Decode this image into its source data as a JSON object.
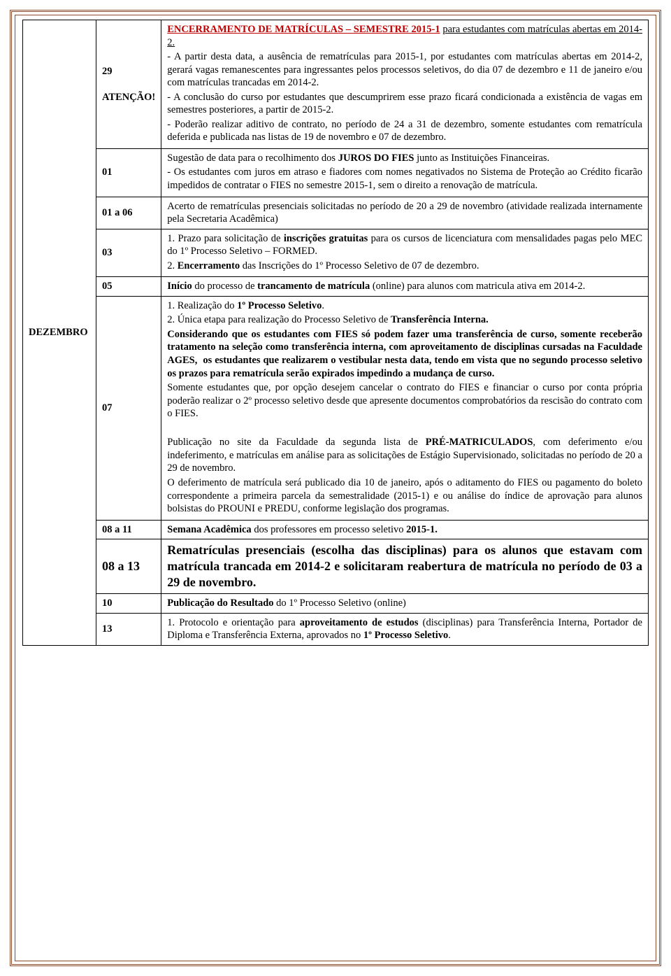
{
  "month": "DEZEMBRO",
  "rows": [
    {
      "date_html": "<span class='atencao'>29<br><br>ATENÇÃO!</span>",
      "content_html": "<p><span class='title-underline'>ENCERRAMENTO DE MATRÍCULAS – SEMESTRE 2015-1</span> <span style='text-decoration:underline'>para estudantes com matrículas abertas em 2014-2.</span></p><p>- A partir desta data, a ausência de rematrículas para 2015-1, por estudantes com matrículas abertas em 2014-2, gerará vagas remanescentes para ingressantes pelos processos seletivos, do dia 07 de dezembro e 11 de janeiro e/ou com matrículas trancadas em 2014-2.</p><p>- A conclusão do curso por estudantes que descumprirem esse prazo ficará condicionada a existência de vagas em semestres posteriores, a partir de 2015-2.</p><p>- Poderão realizar aditivo de contrato, no período de 24 a 31 de dezembro, somente estudantes com rematrícula deferida e publicada nas listas de 19 de novembro e 07 de dezembro.</p>"
    },
    {
      "date_html": "01",
      "content_html": "<p>Sugestão de data para o recolhimento dos <b>JUROS DO FIES</b> junto as Instituições Financeiras.</p><p>- Os estudantes com juros em atraso e fiadores com nomes negativados no Sistema de Proteção ao Crédito ficarão impedidos de contratar o FIES no semestre 2015-1, sem o direito a renovação de matrícula.</p>"
    },
    {
      "date_html": "01 a 06",
      "content_html": "Acerto de rematrículas presenciais solicitadas no período de 20 a 29 de novembro (atividade realizada internamente pela Secretaria Acadêmica)"
    },
    {
      "date_html": "03",
      "content_html": "<p>1. Prazo para solicitação de <b>inscrições gratuitas</b> para os cursos de licenciatura com mensalidades pagas pelo MEC do 1º Processo Seletivo – FORMED.</p><p>2. <b>Encerramento</b> das Inscrições do 1º Processo Seletivo de 07 de dezembro.</p>"
    },
    {
      "date_html": "05",
      "content_html": "<b>Início</b> do processo de <b>trancamento de matrícula</b> (online) para alunos com matricula ativa em 2014-2."
    },
    {
      "date_html": "07",
      "content_html": "<p>1. Realização do <b>1º Processo Seletivo</b>.</p><p>2. Única etapa para realização do Processo Seletivo de <b>Transferência Interna.</b></p><p><b>Considerando que os estudantes com FIES só podem fazer uma transferência de curso, somente receberão tratamento na seleção como transferência interna, com aproveitamento de disciplinas cursadas na Faculdade AGES, &nbsp;os estudantes que realizarem o vestibular nesta data, tendo em vista que no segundo processo seletivo os prazos para rematrícula serão expirados impedindo a mudança de curso.</b></p><p>Somente estudantes que, por opção desejem cancelar o contrato do FIES e financiar o curso por conta própria poderão realizar o 2º processo seletivo desde que apresente documentos comprobatórios da rescisão do contrato com o FIES.</p><p>&nbsp;</p><p>Publicação no site da Faculdade da segunda lista de <b>PRÉ-MATRICULADOS</b>, com deferimento e/ou indeferimento, e matrículas em análise para as solicitações de Estágio Supervisionado, solicitadas no período de 20 a 29 de novembro.</p><p>O deferimento de matrícula será publicado dia 10 de janeiro, após o aditamento do FIES ou pagamento do boleto correspondente a primeira parcela da semestralidade (2015-1) e ou análise do índice de aprovação para alunos bolsistas do PROUNI e PREDU, conforme legislação dos programas.</p>"
    },
    {
      "date_html": "08 a 11",
      "content_html": "<b>Semana Acadêmica</b> dos professores em processo seletivo <b>2015-1.</b>"
    },
    {
      "date_html": "<span class='big'>08 a 13</span>",
      "content_html": "<span class='big'>Rematrículas presenciais (escolha das disciplinas) para os alunos que estavam com matrícula trancada em 2014-2 e solicitaram reabertura de matrícula no período de 03 a 29 de novembro.</span>"
    },
    {
      "date_html": "10",
      "content_html": "<b>Publicação do Resultado</b> do 1º Processo Seletivo (online)"
    },
    {
      "date_html": "13",
      "content_html": "1. Protocolo e orientação para <b>aproveitamento de estudos</b> (disciplinas) para Transferência Interna, Portador de Diploma e Transferência Externa, aprovados no <b>1º Processo Seletivo</b>."
    }
  ]
}
